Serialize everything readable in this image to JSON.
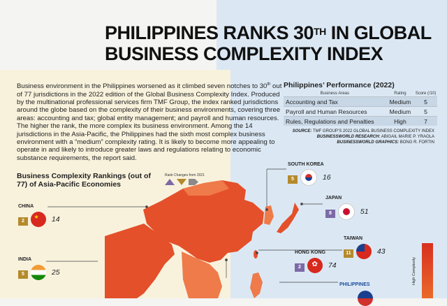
{
  "headline": {
    "line1_a": "PHILIPPINES RANKS 30",
    "line1_sup": "TH",
    "line1_b": " IN GLOBAL",
    "line2": "BUSINESS COMPLEXITY INDEX"
  },
  "intro": {
    "p1_a": "Business environment in the Philippines worsened as it climbed seven notches to 30",
    "p1_sup": "th",
    "p1_b": " out of 77 jurisdictions in the 2022 edition of the Global Business Complexity Index. Produced by the multinational professional services firm TMF Group, the index ranked jurisdictions around the globe based on the complexity of their business environments, covering three areas: accounting and tax; global entity management; and payroll and human resources. The higher the rank, the more complex its business environment. Among the 14 jurisdictions in the Asia-Pacific, the Philippines had the sixth most complex business environment with a “medium” complexity rating. It is likely to become more appealing to operate in and likely to introduce greater laws and regulations relating to economic substance requirements, the report said."
  },
  "performance": {
    "title": "Philippines’ Performance (2022)",
    "headers": [
      "Business Areas",
      "Rating",
      "Score (/10)"
    ],
    "rows": [
      {
        "area": "Accounting and Tax",
        "rating": "Medium",
        "score": "5"
      },
      {
        "area": "Payroll and Human Resources",
        "rating": "Medium",
        "score": "5"
      },
      {
        "area": "Rules, Regulations and Penalties",
        "rating": "High",
        "score": "7"
      }
    ]
  },
  "credits": {
    "source_label": "SOURCE:",
    "source": "TMF GROUP’S 2022 GLOBAL BUSINESS COMPLEXITY INDEX",
    "research_label": "BUSINESSWORLD RESEARCH:",
    "research": "ABIGAIL MARIE P. YRAOLA",
    "graphics_label": "BUSINESSWORLD GRAPHICS:",
    "graphics": "BONG R. FORTIN"
  },
  "rankings": {
    "title": "Business Complexity Rankings (out of 77) of Asia-Pacific Economies",
    "legend_label": "Rank Changes from 2021",
    "countries": [
      {
        "name": "SOUTH KOREA",
        "change": "5",
        "dir": "down",
        "rank": "16"
      },
      {
        "name": "CHINA",
        "change": "2",
        "dir": "down",
        "rank": "14"
      },
      {
        "name": "JAPAN",
        "change": "8",
        "dir": "up",
        "rank": "51"
      },
      {
        "name": "TAIWAN",
        "change": "11",
        "dir": "down",
        "rank": "43"
      },
      {
        "name": "INDIA",
        "change": "5",
        "dir": "down",
        "rank": "25"
      },
      {
        "name": "HONG KONG",
        "change": "2",
        "dir": "up",
        "rank": "74"
      },
      {
        "name": "PHILIPPINES",
        "change": "",
        "dir": "",
        "rank": ""
      }
    ]
  },
  "scale": {
    "label": "High Complexity"
  },
  "colors": {
    "map_high": "#e4502a",
    "map_low": "#f0a070",
    "up": "#7c6aa6",
    "down": "#b48a2c"
  }
}
